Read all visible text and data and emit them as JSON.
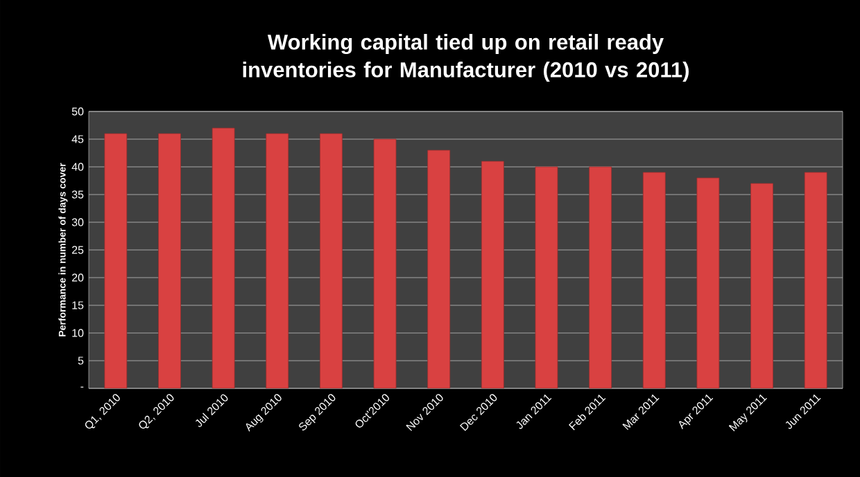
{
  "chart_data": {
    "type": "bar",
    "title": "Working capital tied up on retail ready inventories for Manufacturer (2010 vs 2011)",
    "ylabel": "Performance in number of days cover",
    "categories": [
      "Q1, 2010",
      "Q2, 2010",
      "Jul 2010",
      "Aug 2010",
      "Sep 2010",
      "Oct'2010",
      "Nov 2010",
      "Dec 2010",
      "Jan 2011",
      "Feb 2011",
      "Mar 2011",
      "Apr 2011",
      "May 2011",
      "Jun 2011"
    ],
    "values": [
      46,
      46,
      47,
      46,
      46,
      45,
      43,
      41,
      40,
      40,
      39,
      38,
      37,
      39
    ],
    "color": "#d94141",
    "ylim": [
      0,
      50
    ],
    "yticks": [
      {
        "value": 0,
        "label": "-"
      },
      5,
      10,
      15,
      20,
      25,
      30,
      35,
      40,
      45,
      50
    ],
    "grid": true
  }
}
